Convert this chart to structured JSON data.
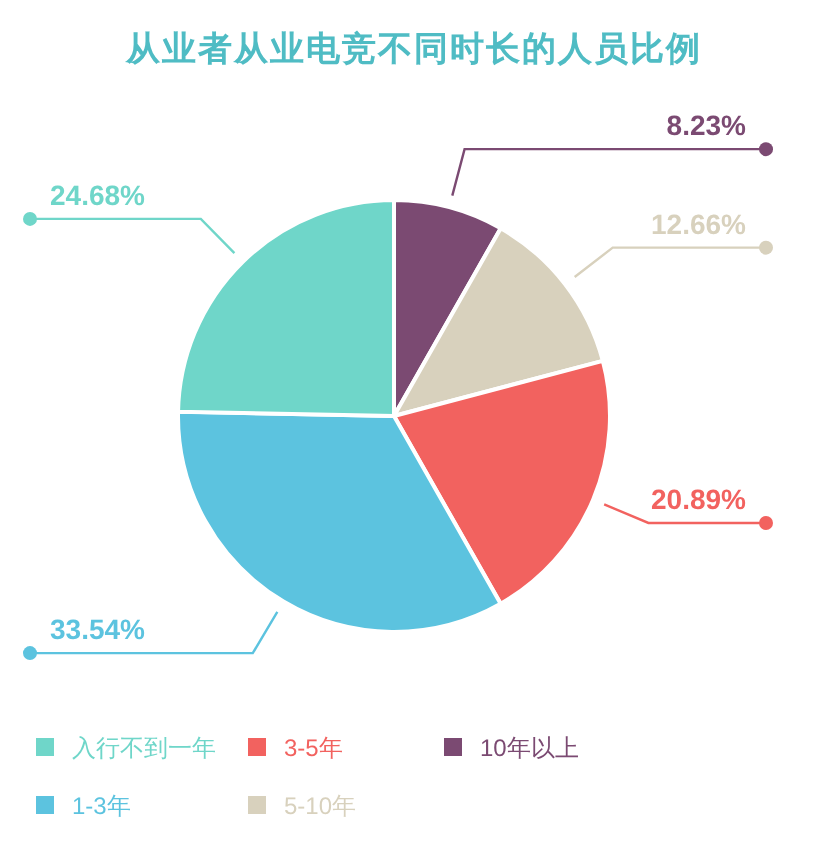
{
  "chart_data": {
    "type": "pie",
    "title": "从业者从业电竞不同时长的人员比例",
    "categories": [
      "10年以上",
      "5-10年",
      "3-5年",
      "1-3年",
      "入行不到一年"
    ],
    "values": [
      8.23,
      12.66,
      20.89,
      33.54,
      24.68
    ],
    "colors": [
      "#7b4a72",
      "#d8d1bd",
      "#f2625f",
      "#5cc3df",
      "#6fd6c9"
    ],
    "value_labels": [
      "8.23%",
      "12.66%",
      "20.89%",
      "33.54%",
      "24.68%"
    ],
    "legend": "bottom"
  }
}
